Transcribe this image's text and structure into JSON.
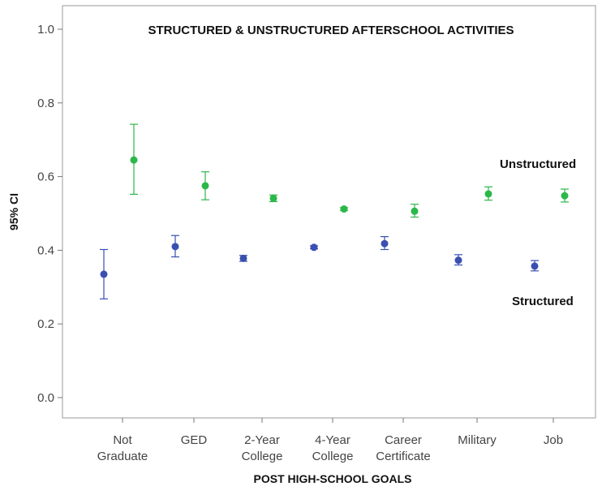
{
  "chart_data": {
    "type": "scatter",
    "title": "STRUCTURED & UNSTRUCTURED AFTERSCHOOL ACTIVITIES",
    "xlabel": "POST HIGH-SCHOOL GOALS",
    "ylabel": "95% CI",
    "ylim": [
      0.0,
      1.0
    ],
    "yticks": [
      "0.0",
      "0.2",
      "0.4",
      "0.6",
      "0.8",
      "1.0"
    ],
    "categories": [
      [
        "Not",
        "Graduate"
      ],
      [
        "GED"
      ],
      [
        "2-Year",
        "College"
      ],
      [
        "4-Year",
        "College"
      ],
      [
        "Career",
        "Certificate"
      ],
      [
        "Military"
      ],
      [
        "Job"
      ]
    ],
    "grid": false,
    "series": [
      {
        "name": "Structured",
        "color": "#3a4fb0",
        "values": [
          0.335,
          0.41,
          0.378,
          0.408,
          0.418,
          0.373,
          0.357
        ],
        "lower": [
          0.268,
          0.382,
          0.37,
          0.404,
          0.402,
          0.36,
          0.344
        ],
        "upper": [
          0.402,
          0.44,
          0.386,
          0.412,
          0.437,
          0.388,
          0.372
        ]
      },
      {
        "name": "Unstructured",
        "color": "#2bb84a",
        "values": [
          0.645,
          0.575,
          0.541,
          0.512,
          0.506,
          0.553,
          0.548
        ],
        "lower": [
          0.552,
          0.537,
          0.532,
          0.508,
          0.49,
          0.536,
          0.531
        ],
        "upper": [
          0.742,
          0.613,
          0.55,
          0.516,
          0.525,
          0.572,
          0.566
        ]
      }
    ]
  }
}
